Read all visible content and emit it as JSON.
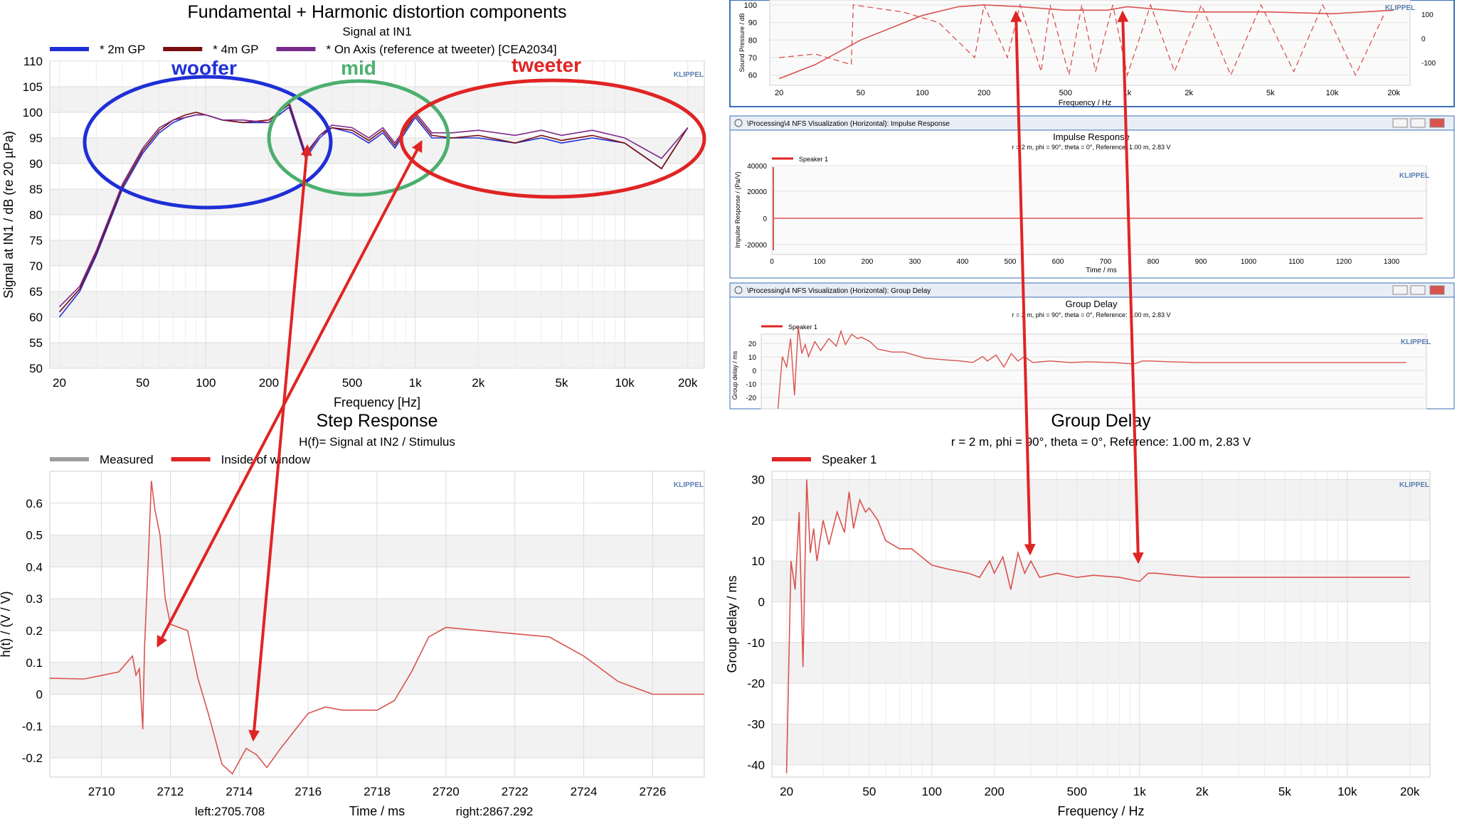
{
  "colors": {
    "blue": "#1f2fd6",
    "darkred": "#7a0e0e",
    "purple": "#7b2a8c",
    "red": "#e02424",
    "green": "#4caf6e",
    "grid": "#dcdcdc",
    "band": "#f2f2f2",
    "curve": "#d9534f",
    "klippel": "#5a7fb0"
  },
  "badge": "KLIPPEL",
  "chart_data": [
    {
      "id": "fundamental",
      "type": "line",
      "title": "Fundamental + Harmonic distortion components",
      "subtitle": "Signal at IN1",
      "xlabel": "Frequency [Hz]",
      "ylabel": "Signal at IN1 / dB (re 20 µPa)",
      "xscale": "log",
      "xlim": [
        18,
        24000
      ],
      "ylim": [
        50,
        110
      ],
      "xticks": [
        20,
        50,
        100,
        200,
        500,
        1000,
        2000,
        5000,
        10000,
        20000
      ],
      "xticklabels": [
        "20",
        "50",
        "100",
        "200",
        "500",
        "1k",
        "2k",
        "5k",
        "10k",
        "20k"
      ],
      "yticks": [
        50,
        55,
        60,
        65,
        70,
        75,
        80,
        85,
        90,
        95,
        100,
        105,
        110
      ],
      "legend": [
        "* 2m GP",
        "* 4m GP",
        "* On Axis (reference at tweeter) [CEA2034]"
      ],
      "annotations": [
        "woofer",
        "mid",
        "tweeter"
      ],
      "series": [
        {
          "name": "* 2m GP",
          "x": [
            20,
            25,
            30,
            40,
            50,
            60,
            70,
            80,
            90,
            100,
            120,
            150,
            200,
            250,
            300,
            350,
            400,
            500,
            600,
            700,
            800,
            1000,
            1200,
            1500,
            2000,
            3000,
            4000,
            5000,
            7000,
            10000,
            15000,
            20000
          ],
          "y": [
            60,
            65,
            72,
            85,
            92,
            96,
            98,
            99,
            99.5,
            99.5,
            98.5,
            98,
            98,
            101,
            91,
            95,
            97,
            96,
            94,
            96,
            93,
            99,
            95,
            95,
            95,
            94,
            95,
            94,
            95,
            94,
            89,
            97
          ]
        },
        {
          "name": "* 4m GP",
          "x": [
            20,
            25,
            30,
            40,
            50,
            60,
            70,
            80,
            90,
            100,
            120,
            150,
            200,
            250,
            300,
            350,
            400,
            500,
            600,
            700,
            800,
            1000,
            1200,
            1500,
            2000,
            3000,
            4000,
            5000,
            7000,
            10000,
            15000,
            20000
          ],
          "y": [
            61,
            65.5,
            72.5,
            85.5,
            92.5,
            96.5,
            98.5,
            99.5,
            100,
            99.5,
            98.5,
            98,
            98.5,
            101.5,
            91.5,
            95.5,
            97,
            96.5,
            94.5,
            96.5,
            93.5,
            99.5,
            95.5,
            95,
            95.5,
            94,
            95.5,
            94.5,
            95.5,
            94,
            89,
            97
          ]
        },
        {
          "name": "* On Axis (reference at tweeter) [CEA2034]",
          "x": [
            20,
            25,
            30,
            40,
            50,
            60,
            70,
            80,
            90,
            100,
            120,
            150,
            200,
            250,
            300,
            350,
            400,
            500,
            600,
            700,
            800,
            1000,
            1200,
            1500,
            2000,
            3000,
            4000,
            5000,
            7000,
            10000,
            15000,
            20000
          ],
          "y": [
            62,
            66,
            73,
            86,
            93,
            97,
            98.5,
            99,
            99.5,
            99.5,
            98.5,
            98.5,
            98,
            102,
            92,
            95.5,
            97.5,
            97,
            95,
            97,
            94,
            100,
            96,
            96,
            96.5,
            95.5,
            96.5,
            95.5,
            96.5,
            95,
            91,
            97
          ]
        }
      ]
    },
    {
      "id": "step",
      "type": "line",
      "title": "Step Response",
      "subtitle": "H(f)= Signal at IN2 / Stimulus",
      "xlabel": "Time / ms",
      "ylabel": "h(t) / (V / V)",
      "xlim": [
        2708.5,
        2727.5
      ],
      "ylim": [
        -0.26,
        0.7
      ],
      "xticks": [
        2710,
        2712,
        2714,
        2716,
        2718,
        2720,
        2722,
        2724,
        2726
      ],
      "yticks": [
        -0.2,
        -0.1,
        0,
        0.1,
        0.2,
        0.3,
        0.4,
        0.5,
        0.6
      ],
      "legend": [
        "Measured",
        "Inside of window"
      ],
      "footer_left": "left:2705.708",
      "footer_right": "right:2867.292",
      "series": [
        {
          "name": "Inside of window",
          "x": [
            2708.5,
            2709.5,
            2710.5,
            2710.9,
            2711.0,
            2711.1,
            2711.2,
            2711.25,
            2711.35,
            2711.45,
            2711.55,
            2711.7,
            2711.85,
            2712.0,
            2712.5,
            2712.8,
            2713.1,
            2713.5,
            2713.8,
            2714.2,
            2714.5,
            2714.8,
            2715.2,
            2716.0,
            2716.5,
            2717.0,
            2718.0,
            2718.5,
            2719.0,
            2719.5,
            2720.0,
            2721.0,
            2722.0,
            2723.0,
            2724.0,
            2725.0,
            2726.0,
            2727.5
          ],
          "y": [
            0.05,
            0.048,
            0.07,
            0.12,
            0.06,
            0.08,
            -0.11,
            0.15,
            0.4,
            0.67,
            0.58,
            0.5,
            0.3,
            0.22,
            0.2,
            0.05,
            -0.06,
            -0.22,
            -0.25,
            -0.17,
            -0.19,
            -0.23,
            -0.17,
            -0.06,
            -0.04,
            -0.05,
            -0.05,
            -0.02,
            0.07,
            0.18,
            0.21,
            0.2,
            0.19,
            0.18,
            0.12,
            0.04,
            0.0,
            0.0
          ]
        }
      ]
    },
    {
      "id": "groupdelay",
      "type": "line",
      "title": "Group Delay",
      "subtitle": "r = 2 m, phi = 90°, theta = 0°, Reference: 1.00 m, 2.83 V",
      "xlabel": "Frequency / Hz",
      "ylabel": "Group delay / ms",
      "xscale": "log",
      "xlim": [
        17,
        25000
      ],
      "ylim": [
        -43,
        32
      ],
      "xticks": [
        20,
        50,
        100,
        200,
        500,
        1000,
        2000,
        5000,
        10000,
        20000
      ],
      "xticklabels": [
        "20",
        "50",
        "100",
        "200",
        "500",
        "1k",
        "2k",
        "5k",
        "10k",
        "20k"
      ],
      "yticks": [
        -40,
        -30,
        -20,
        -10,
        0,
        10,
        20,
        30
      ],
      "legend": [
        "Speaker 1"
      ],
      "series": [
        {
          "name": "Speaker 1",
          "x": [
            20,
            21,
            22,
            23,
            24,
            25,
            26,
            27,
            28,
            30,
            32,
            35,
            38,
            40,
            42,
            45,
            48,
            50,
            55,
            60,
            70,
            80,
            100,
            120,
            150,
            170,
            190,
            200,
            220,
            240,
            260,
            280,
            300,
            330,
            400,
            500,
            600,
            800,
            1000,
            1100,
            1200,
            1500,
            2000,
            5000,
            10000,
            20000
          ],
          "y": [
            -42,
            10,
            3,
            22,
            -16,
            30,
            12,
            18,
            10,
            20,
            14,
            22,
            17,
            27,
            18,
            25,
            22,
            23,
            20,
            15,
            13,
            13,
            9,
            8,
            7,
            6,
            10,
            7,
            11,
            3,
            12,
            7,
            10,
            6,
            7,
            6,
            6.5,
            6,
            5,
            7,
            7,
            6.5,
            6,
            6,
            6,
            6
          ]
        }
      ]
    }
  ],
  "screenshot": {
    "top_ylabel": "Sound Pressure / dB",
    "top_xlabel": "Frequency / Hz",
    "top_yticks": [
      "100",
      "90",
      "80",
      "70",
      "60"
    ],
    "top_right_ticks": [
      "100",
      "0",
      "-100"
    ],
    "top_xticks": [
      "20",
      "50",
      "100",
      "200",
      "500",
      "1k",
      "2k",
      "5k",
      "10k",
      "20k"
    ],
    "impulse_window": "\\Processing\\4 NFS Visualization (Horizontal): Impulse Response",
    "impulse_title": "Impulse Response",
    "impulse_subtitle": "r = 2 m, phi = 90°, theta = 0°, Reference: 1.00 m, 2.83 V",
    "impulse_legend": "Speaker 1",
    "impulse_ylabel": "Impulse Response / (Pa/V)",
    "impulse_yticks": [
      "40000",
      "20000",
      "0",
      "-20000"
    ],
    "impulse_xticks": [
      "0",
      "100",
      "200",
      "300",
      "400",
      "500",
      "600",
      "700",
      "800",
      "900",
      "1000",
      "1100",
      "1200",
      "1300"
    ],
    "impulse_xlabel": "Time / ms",
    "gd_window": "\\Processing\\4 NFS Visualization (Horizontal): Group Delay",
    "gd_title": "Group Delay",
    "gd_subtitle": "r = 2 m, phi = 90°, theta = 0°, Reference: 1.00 m, 2.83 V",
    "gd_legend": "Speaker 1",
    "gd_ylabel": "Group delay / ms",
    "gd_yticks": [
      "20",
      "10",
      "0",
      "-10",
      "-20"
    ]
  }
}
